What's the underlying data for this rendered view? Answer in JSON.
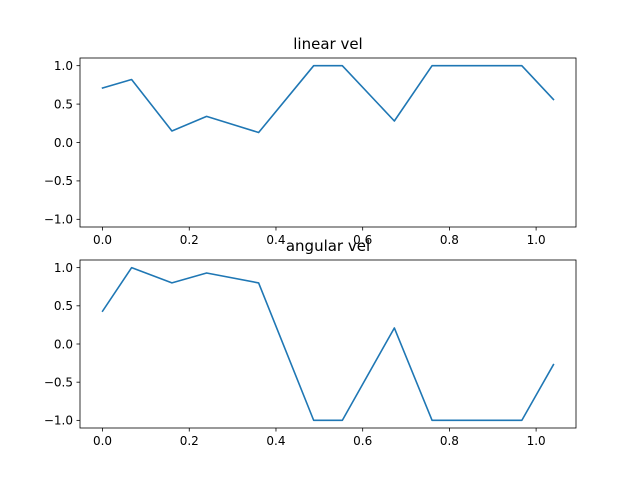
{
  "chart_data": [
    {
      "type": "line",
      "title": "linear vel",
      "xlabel": "",
      "ylabel": "",
      "xlim": [
        -0.052,
        1.092
      ],
      "ylim": [
        -1.1,
        1.1
      ],
      "xticks": [
        0.0,
        0.2,
        0.4,
        0.6,
        0.8,
        1.0
      ],
      "xtick_labels": [
        "0.0",
        "0.2",
        "0.4",
        "0.6",
        "0.8",
        "1.0"
      ],
      "yticks": [
        1.0,
        0.5,
        0.0,
        -0.5,
        -1.0
      ],
      "ytick_labels": [
        "1.0",
        "0.5",
        "0.0",
        "−0.5",
        "−1.0"
      ],
      "grid": false,
      "color": "#1f77b4",
      "x": [
        0.0,
        0.067,
        0.16,
        0.24,
        0.36,
        0.487,
        0.553,
        0.673,
        0.76,
        0.967,
        1.04
      ],
      "y": [
        0.71,
        0.82,
        0.15,
        0.34,
        0.13,
        1.0,
        1.0,
        0.28,
        1.0,
        1.0,
        0.56
      ]
    },
    {
      "type": "line",
      "title": "angular vel",
      "xlabel": "",
      "ylabel": "",
      "xlim": [
        -0.052,
        1.092
      ],
      "ylim": [
        -1.1,
        1.1
      ],
      "xticks": [
        0.0,
        0.2,
        0.4,
        0.6,
        0.8,
        1.0
      ],
      "xtick_labels": [
        "0.0",
        "0.2",
        "0.4",
        "0.6",
        "0.8",
        "1.0"
      ],
      "yticks": [
        1.0,
        0.5,
        0.0,
        -0.5,
        -1.0
      ],
      "ytick_labels": [
        "1.0",
        "0.5",
        "0.0",
        "−0.5",
        "−1.0"
      ],
      "grid": false,
      "color": "#1f77b4",
      "x": [
        0.0,
        0.067,
        0.16,
        0.24,
        0.36,
        0.487,
        0.553,
        0.673,
        0.76,
        0.967,
        1.04
      ],
      "y": [
        0.43,
        1.0,
        0.8,
        0.93,
        0.8,
        -1.0,
        -1.0,
        0.21,
        -1.0,
        -1.0,
        -0.27
      ]
    }
  ]
}
